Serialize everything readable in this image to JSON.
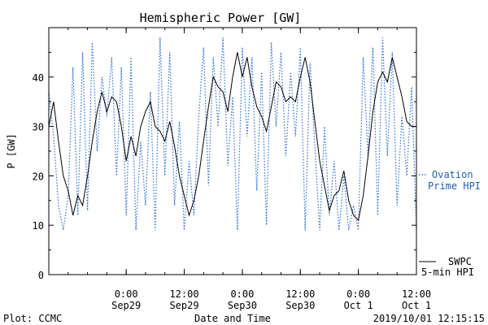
{
  "colors": {
    "observed": "#000000",
    "model": "#2a6fd6",
    "legend_model": "#1f5fb0"
  },
  "chart_data": {
    "type": "line",
    "title": "Hemispheric Power [GW]",
    "ylabel": "P [GW]",
    "xlabel": "Date and Time",
    "ylim": [
      0,
      50
    ],
    "yticks": [
      0,
      10,
      20,
      30,
      40
    ],
    "xlim": [
      "2019-09-28 08:00",
      "2019-10-01 12:00"
    ],
    "xticks": [
      {
        "time": "2019-09-29 00:00",
        "line1": "0:00",
        "line2": "Sep29"
      },
      {
        "time": "2019-09-29 12:00",
        "line1": "12:00",
        "line2": "Sep29"
      },
      {
        "time": "2019-09-30 00:00",
        "line1": "0:00",
        "line2": "Sep30"
      },
      {
        "time": "2019-09-30 12:00",
        "line1": "12:00",
        "line2": "Sep30"
      },
      {
        "time": "2019-10-01 00:00",
        "line1": "0:00",
        "line2": "Oct 1"
      },
      {
        "time": "2019-10-01 12:00",
        "line1": "12:00",
        "line2": "Oct 1"
      }
    ],
    "grid": false,
    "series": [
      {
        "name": "SWPC 5-min HPI",
        "legend": [
          "SWPC",
          "5-min HPI"
        ],
        "style": "solid",
        "points": [
          [
            "2019-09-28 08:00",
            30
          ],
          [
            "2019-09-28 09:00",
            35
          ],
          [
            "2019-09-28 10:00",
            27
          ],
          [
            "2019-09-28 11:00",
            20
          ],
          [
            "2019-09-28 12:00",
            17
          ],
          [
            "2019-09-28 13:00",
            12
          ],
          [
            "2019-09-28 14:00",
            16
          ],
          [
            "2019-09-28 15:00",
            14
          ],
          [
            "2019-09-28 16:00",
            20
          ],
          [
            "2019-09-28 17:00",
            27
          ],
          [
            "2019-09-28 18:00",
            33
          ],
          [
            "2019-09-28 19:00",
            37
          ],
          [
            "2019-09-28 20:00",
            33
          ],
          [
            "2019-09-28 21:00",
            36
          ],
          [
            "2019-09-28 22:00",
            35
          ],
          [
            "2019-09-28 23:00",
            30
          ],
          [
            "2019-09-29 00:00",
            23
          ],
          [
            "2019-09-29 01:00",
            28
          ],
          [
            "2019-09-29 02:00",
            24
          ],
          [
            "2019-09-29 03:00",
            30
          ],
          [
            "2019-09-29 04:00",
            33
          ],
          [
            "2019-09-29 05:00",
            35
          ],
          [
            "2019-09-29 06:00",
            30
          ],
          [
            "2019-09-29 07:00",
            29
          ],
          [
            "2019-09-29 08:00",
            27
          ],
          [
            "2019-09-29 09:00",
            31
          ],
          [
            "2019-09-29 10:00",
            26
          ],
          [
            "2019-09-29 11:00",
            20
          ],
          [
            "2019-09-29 12:00",
            16
          ],
          [
            "2019-09-29 13:00",
            12
          ],
          [
            "2019-09-29 14:00",
            15
          ],
          [
            "2019-09-29 15:00",
            20
          ],
          [
            "2019-09-29 16:00",
            27
          ],
          [
            "2019-09-29 17:00",
            34
          ],
          [
            "2019-09-29 18:00",
            40
          ],
          [
            "2019-09-29 19:00",
            38
          ],
          [
            "2019-09-29 20:00",
            37
          ],
          [
            "2019-09-29 21:00",
            33
          ],
          [
            "2019-09-29 22:00",
            40
          ],
          [
            "2019-09-29 23:00",
            45
          ],
          [
            "2019-09-30 00:00",
            40
          ],
          [
            "2019-09-30 01:00",
            44
          ],
          [
            "2019-09-30 02:00",
            38
          ],
          [
            "2019-09-30 03:00",
            34
          ],
          [
            "2019-09-30 04:00",
            32
          ],
          [
            "2019-09-30 05:00",
            29
          ],
          [
            "2019-09-30 06:00",
            34
          ],
          [
            "2019-09-30 07:00",
            39
          ],
          [
            "2019-09-30 08:00",
            38
          ],
          [
            "2019-09-30 09:00",
            35
          ],
          [
            "2019-09-30 10:00",
            36
          ],
          [
            "2019-09-30 11:00",
            35
          ],
          [
            "2019-09-30 12:00",
            40
          ],
          [
            "2019-09-30 13:00",
            44
          ],
          [
            "2019-09-30 14:00",
            39
          ],
          [
            "2019-09-30 15:00",
            31
          ],
          [
            "2019-09-30 16:00",
            23
          ],
          [
            "2019-09-30 17:00",
            18
          ],
          [
            "2019-09-30 18:00",
            13
          ],
          [
            "2019-09-30 19:00",
            16
          ],
          [
            "2019-09-30 20:00",
            17
          ],
          [
            "2019-09-30 21:00",
            21
          ],
          [
            "2019-09-30 22:00",
            15
          ],
          [
            "2019-09-30 23:00",
            12
          ],
          [
            "2019-10-01 00:00",
            11
          ],
          [
            "2019-10-01 01:00",
            16
          ],
          [
            "2019-10-01 02:00",
            24
          ],
          [
            "2019-10-01 03:00",
            33
          ],
          [
            "2019-10-01 04:00",
            39
          ],
          [
            "2019-10-01 05:00",
            41
          ],
          [
            "2019-10-01 06:00",
            39
          ],
          [
            "2019-10-01 07:00",
            44
          ],
          [
            "2019-10-01 08:00",
            40
          ],
          [
            "2019-10-01 09:00",
            36
          ],
          [
            "2019-10-01 10:00",
            31
          ],
          [
            "2019-10-01 11:00",
            30
          ],
          [
            "2019-10-01 12:00",
            30
          ]
        ]
      },
      {
        "name": "Ovation Prime HPI",
        "legend": [
          "Ovation",
          "Prime HPI"
        ],
        "style": "dotted",
        "points": [
          [
            "2019-09-28 08:00",
            37
          ],
          [
            "2019-09-28 09:00",
            28
          ],
          [
            "2019-09-28 10:00",
            14
          ],
          [
            "2019-09-28 11:00",
            9
          ],
          [
            "2019-09-28 12:00",
            16
          ],
          [
            "2019-09-28 13:00",
            42
          ],
          [
            "2019-09-28 14:00",
            12
          ],
          [
            "2019-09-28 15:00",
            45
          ],
          [
            "2019-09-28 16:00",
            13
          ],
          [
            "2019-09-28 17:00",
            47
          ],
          [
            "2019-09-28 18:00",
            25
          ],
          [
            "2019-09-28 19:00",
            40
          ],
          [
            "2019-09-28 20:00",
            32
          ],
          [
            "2019-09-28 21:00",
            44
          ],
          [
            "2019-09-28 22:00",
            20
          ],
          [
            "2019-09-28 23:00",
            42
          ],
          [
            "2019-09-29 00:00",
            12
          ],
          [
            "2019-09-29 01:00",
            44
          ],
          [
            "2019-09-29 02:00",
            9
          ],
          [
            "2019-09-29 03:00",
            27
          ],
          [
            "2019-09-29 04:00",
            14
          ],
          [
            "2019-09-29 05:00",
            37
          ],
          [
            "2019-09-29 06:00",
            9
          ],
          [
            "2019-09-29 07:00",
            48
          ],
          [
            "2019-09-29 08:00",
            20
          ],
          [
            "2019-09-29 09:00",
            45
          ],
          [
            "2019-09-29 10:00",
            14
          ],
          [
            "2019-09-29 11:00",
            31
          ],
          [
            "2019-09-29 12:00",
            9
          ],
          [
            "2019-09-29 13:00",
            23
          ],
          [
            "2019-09-29 14:00",
            12
          ],
          [
            "2019-09-29 15:00",
            32
          ],
          [
            "2019-09-29 16:00",
            46
          ],
          [
            "2019-09-29 17:00",
            18
          ],
          [
            "2019-09-29 18:00",
            44
          ],
          [
            "2019-09-29 19:00",
            30
          ],
          [
            "2019-09-29 20:00",
            48
          ],
          [
            "2019-09-29 21:00",
            22
          ],
          [
            "2019-09-29 22:00",
            36
          ],
          [
            "2019-09-29 23:00",
            9
          ],
          [
            "2019-09-30 00:00",
            46
          ],
          [
            "2019-09-30 01:00",
            28
          ],
          [
            "2019-09-30 02:00",
            44
          ],
          [
            "2019-09-30 03:00",
            17
          ],
          [
            "2019-09-30 04:00",
            41
          ],
          [
            "2019-09-30 05:00",
            10
          ],
          [
            "2019-09-30 06:00",
            47
          ],
          [
            "2019-09-30 07:00",
            30
          ],
          [
            "2019-09-30 08:00",
            45
          ],
          [
            "2019-09-30 09:00",
            24
          ],
          [
            "2019-09-30 10:00",
            41
          ],
          [
            "2019-09-30 11:00",
            28
          ],
          [
            "2019-09-30 12:00",
            46
          ],
          [
            "2019-09-30 13:00",
            9
          ],
          [
            "2019-09-30 14:00",
            43
          ],
          [
            "2019-09-30 15:00",
            26
          ],
          [
            "2019-09-30 16:00",
            9
          ],
          [
            "2019-09-30 17:00",
            30
          ],
          [
            "2019-09-30 18:00",
            12
          ],
          [
            "2019-09-30 19:00",
            23
          ],
          [
            "2019-09-30 20:00",
            9
          ],
          [
            "2019-09-30 21:00",
            20
          ],
          [
            "2019-09-30 22:00",
            9
          ],
          [
            "2019-09-30 23:00",
            14
          ],
          [
            "2019-10-01 00:00",
            9
          ],
          [
            "2019-10-01 01:00",
            44
          ],
          [
            "2019-10-01 02:00",
            24
          ],
          [
            "2019-10-01 03:00",
            46
          ],
          [
            "2019-10-01 04:00",
            12
          ],
          [
            "2019-10-01 05:00",
            48
          ],
          [
            "2019-10-01 06:00",
            24
          ],
          [
            "2019-10-01 07:00",
            45
          ],
          [
            "2019-10-01 08:00",
            14
          ],
          [
            "2019-10-01 09:00",
            32
          ],
          [
            "2019-10-01 10:00",
            20
          ],
          [
            "2019-10-01 11:00",
            38
          ],
          [
            "2019-10-01 12:00",
            9
          ]
        ]
      }
    ]
  },
  "footer": {
    "plot_credit": "Plot: CCMC",
    "timestamp": "2019/10/01 12:15:15"
  }
}
